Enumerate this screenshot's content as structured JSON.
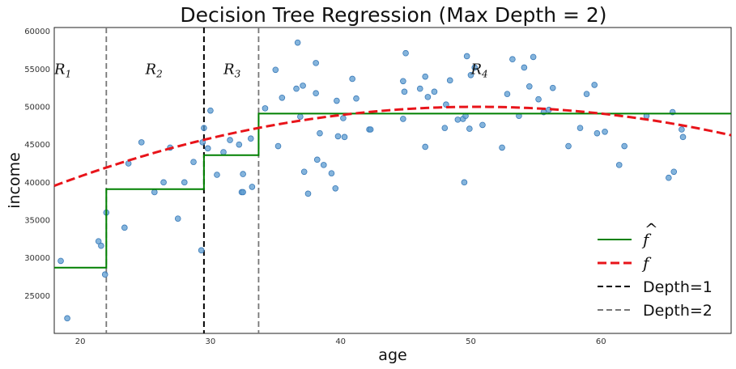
{
  "chart_data": {
    "type": "scatter",
    "title": "Decision Tree Regression (Max Depth = 2)",
    "xlabel": "age",
    "ylabel": "income",
    "xlim": [
      18,
      70
    ],
    "ylim": [
      20000,
      60500
    ],
    "xticks": [
      20,
      30,
      40,
      50,
      60
    ],
    "yticks": [
      25000,
      30000,
      35000,
      40000,
      45000,
      50000,
      55000,
      60000
    ],
    "grid": false,
    "legend_position": "lower-right",
    "colors": {
      "points": "#5b9bd0",
      "points_edge": "#3a7ab8",
      "step": "#008000",
      "curve": "#e8141a",
      "depth1": "#000000",
      "depth2": "#777777"
    },
    "regions": [
      {
        "label": "R",
        "sub": "1",
        "x": 18.0,
        "y": 55000
      },
      {
        "label": "R",
        "sub": "2",
        "x": 25.0,
        "y": 55000
      },
      {
        "label": "R",
        "sub": "3",
        "x": 31.0,
        "y": 55000
      },
      {
        "label": "R",
        "sub": "4",
        "x": 50.0,
        "y": 55000
      }
    ],
    "splits": {
      "depth1": [
        29.5
      ],
      "depth2": [
        22.0,
        33.7
      ]
    },
    "step_fit": [
      {
        "x0": 18.0,
        "x1": 22.0,
        "y": 28700
      },
      {
        "x0": 22.0,
        "x1": 29.5,
        "y": 39100
      },
      {
        "x0": 29.5,
        "x1": 33.7,
        "y": 43600
      },
      {
        "x0": 33.7,
        "x1": 70.0,
        "y": 49100
      }
    ],
    "true_function": {
      "form": "quadratic",
      "vertex_x": 50.5,
      "vertex_y": 50000,
      "a": -9.9
    },
    "legend": [
      {
        "label": "f",
        "hat": true,
        "style": "step"
      },
      {
        "label": "f",
        "hat": false,
        "style": "curve"
      },
      {
        "label": "Depth=1",
        "style": "depth1"
      },
      {
        "label": "Depth=2",
        "style": "depth2"
      }
    ],
    "points": [
      [
        18.5,
        29600
      ],
      [
        19.0,
        22000
      ],
      [
        21.4,
        32200
      ],
      [
        21.6,
        31600
      ],
      [
        21.9,
        27800
      ],
      [
        22.0,
        36000
      ],
      [
        23.4,
        34000
      ],
      [
        23.7,
        42500
      ],
      [
        24.7,
        45300
      ],
      [
        25.7,
        38700
      ],
      [
        26.4,
        40000
      ],
      [
        26.9,
        44600
      ],
      [
        27.5,
        35200
      ],
      [
        28.0,
        40000
      ],
      [
        28.7,
        42700
      ],
      [
        29.3,
        31000
      ],
      [
        29.4,
        45300
      ],
      [
        29.5,
        47200
      ],
      [
        29.8,
        44500
      ],
      [
        30.0,
        49500
      ],
      [
        30.5,
        41000
      ],
      [
        31.0,
        44000
      ],
      [
        31.5,
        45600
      ],
      [
        32.2,
        45000
      ],
      [
        32.4,
        38700
      ],
      [
        32.5,
        41100
      ],
      [
        32.5,
        38700
      ],
      [
        33.1,
        45800
      ],
      [
        33.2,
        39400
      ],
      [
        34.2,
        49800
      ],
      [
        35.0,
        54900
      ],
      [
        35.2,
        44800
      ],
      [
        35.5,
        51200
      ],
      [
        36.6,
        52400
      ],
      [
        36.7,
        58500
      ],
      [
        36.9,
        48700
      ],
      [
        37.1,
        52800
      ],
      [
        37.2,
        41400
      ],
      [
        37.5,
        38500
      ],
      [
        38.1,
        55800
      ],
      [
        38.1,
        51800
      ],
      [
        38.2,
        43000
      ],
      [
        38.4,
        46500
      ],
      [
        38.7,
        42300
      ],
      [
        39.3,
        41200
      ],
      [
        39.6,
        39200
      ],
      [
        39.7,
        50800
      ],
      [
        39.8,
        46100
      ],
      [
        40.2,
        48500
      ],
      [
        40.3,
        46000
      ],
      [
        40.9,
        53700
      ],
      [
        41.2,
        51100
      ],
      [
        42.2,
        47000
      ],
      [
        42.3,
        47000
      ],
      [
        44.8,
        48400
      ],
      [
        44.8,
        53400
      ],
      [
        44.9,
        52000
      ],
      [
        45.0,
        57100
      ],
      [
        46.1,
        52400
      ],
      [
        46.5,
        44700
      ],
      [
        46.5,
        54000
      ],
      [
        46.7,
        51300
      ],
      [
        47.2,
        52000
      ],
      [
        48.0,
        47200
      ],
      [
        48.1,
        50300
      ],
      [
        48.4,
        53500
      ],
      [
        49.0,
        48300
      ],
      [
        49.4,
        48400
      ],
      [
        49.5,
        40000
      ],
      [
        49.6,
        48800
      ],
      [
        49.7,
        56700
      ],
      [
        49.9,
        47100
      ],
      [
        50.0,
        54200
      ],
      [
        50.3,
        55200
      ],
      [
        50.9,
        47600
      ],
      [
        52.4,
        44600
      ],
      [
        52.8,
        51700
      ],
      [
        53.2,
        56300
      ],
      [
        53.7,
        48800
      ],
      [
        54.1,
        55200
      ],
      [
        54.5,
        52700
      ],
      [
        54.8,
        56600
      ],
      [
        55.2,
        51000
      ],
      [
        55.6,
        49300
      ],
      [
        56.0,
        49600
      ],
      [
        56.3,
        52500
      ],
      [
        57.5,
        44800
      ],
      [
        58.4,
        47200
      ],
      [
        58.9,
        51700
      ],
      [
        59.5,
        52900
      ],
      [
        59.7,
        46500
      ],
      [
        60.3,
        46700
      ],
      [
        61.4,
        42300
      ],
      [
        61.8,
        44800
      ],
      [
        63.5,
        48800
      ],
      [
        65.2,
        40600
      ],
      [
        65.5,
        49300
      ],
      [
        65.6,
        41400
      ],
      [
        66.2,
        47000
      ],
      [
        66.3,
        46000
      ]
    ]
  }
}
